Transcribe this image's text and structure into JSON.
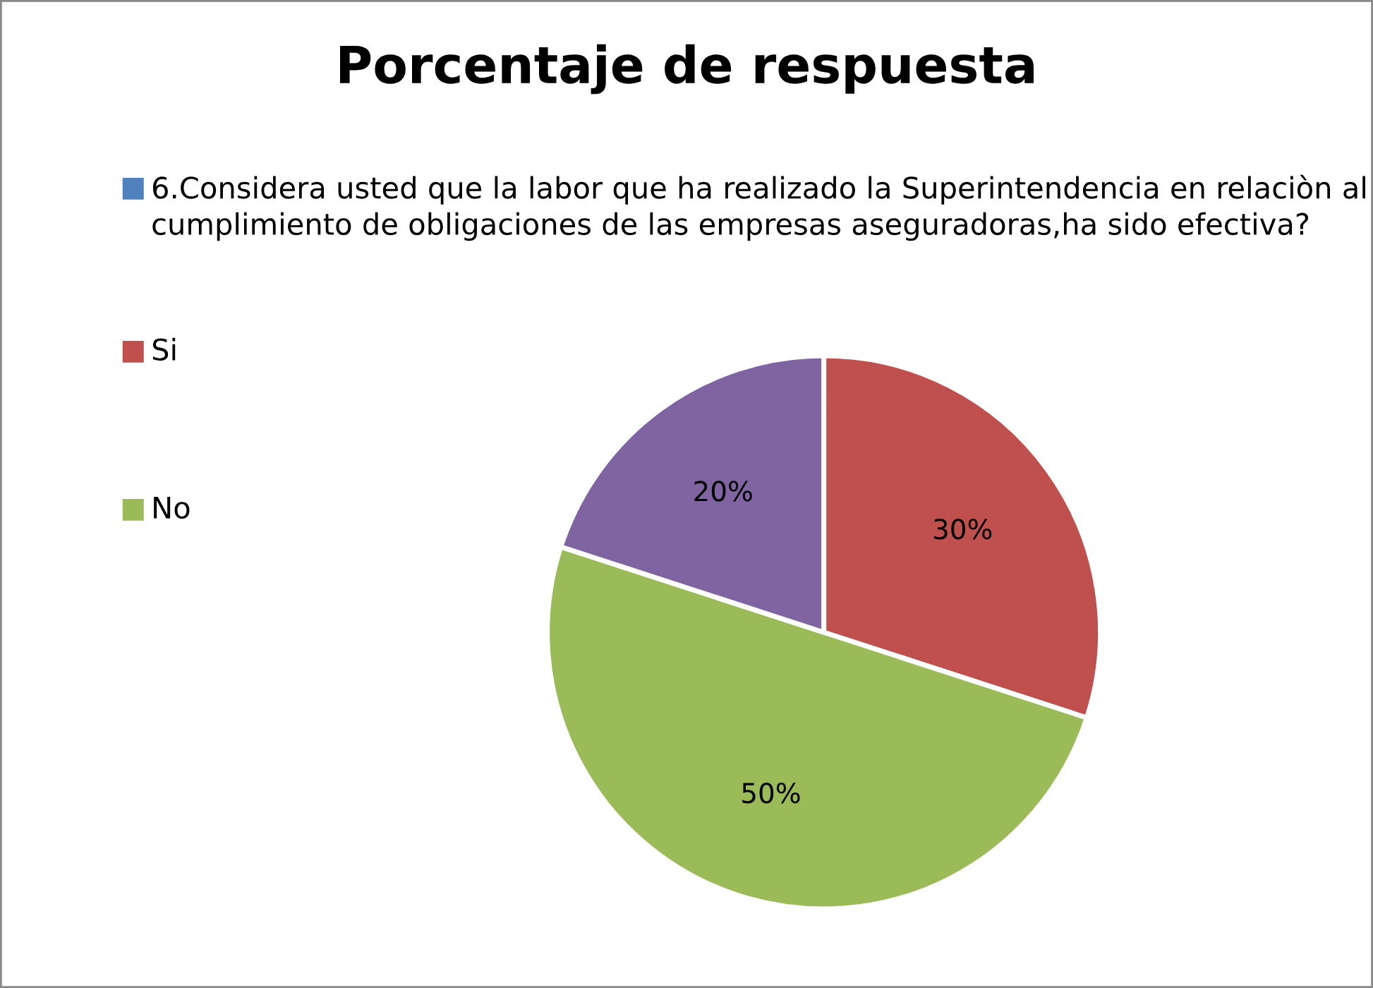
{
  "chart_data": {
    "type": "pie",
    "title": "Porcentaje de respuesta",
    "categories": [
      "6.Considera usted que la labor que ha realizado la Superintendencia en relaciòn al cumplimiento de obligaciones de las empresas aseguradoras,ha sido efectiva?",
      "Si",
      "No",
      null
    ],
    "values": [
      0,
      30,
      50,
      20
    ],
    "colors": [
      "#4f81bd",
      "#c0504d",
      "#9bbb59",
      "#8064a2"
    ],
    "value_labels": [
      null,
      "30%",
      "50%",
      "20%"
    ],
    "legend": "top"
  }
}
